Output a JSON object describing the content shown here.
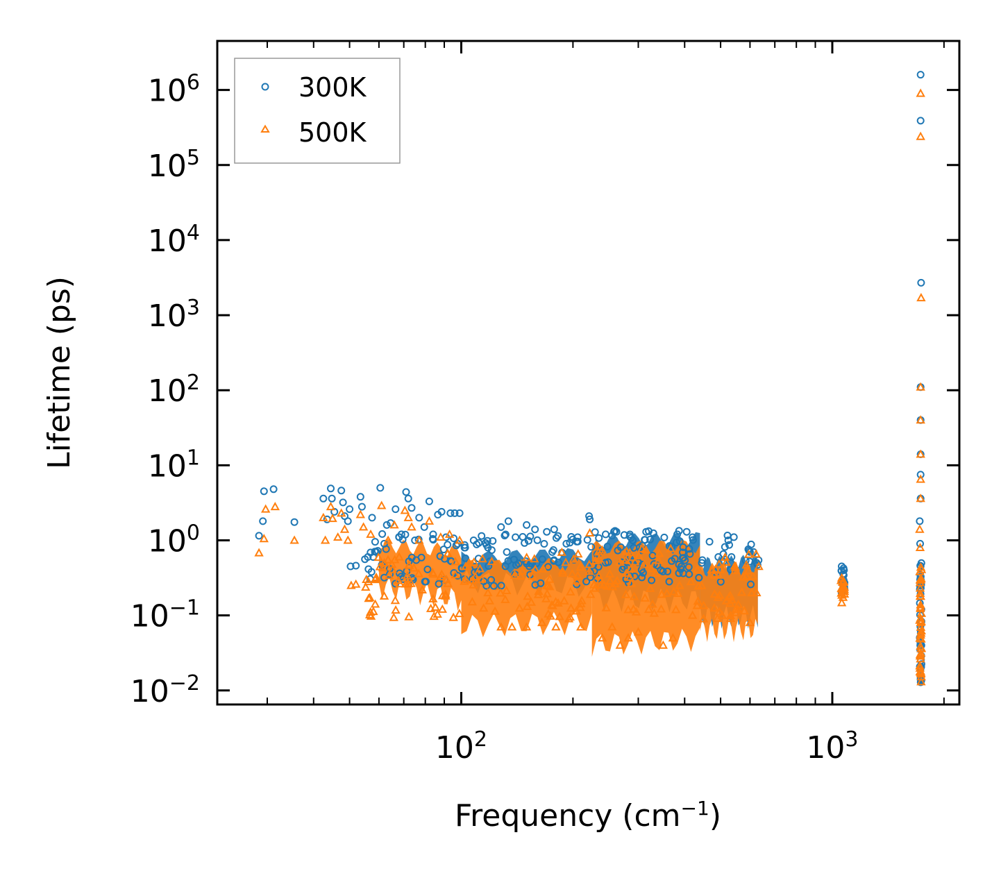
{
  "chart_data": {
    "type": "scatter",
    "title": "",
    "xlabel": "Frequency (cm",
    "xlabel_sup": "−1",
    "xlabel_end": ")",
    "ylabel": "Lifetime (ps)",
    "xscale": "log",
    "yscale": "log",
    "xlim": [
      22,
      2200
    ],
    "ylim": [
      0.0065,
      4500000
    ],
    "x_ticks": [
      {
        "value": 100,
        "base": "10",
        "exp": "2"
      },
      {
        "value": 1000,
        "base": "10",
        "exp": "3"
      }
    ],
    "y_ticks": [
      {
        "value": 0.01,
        "base": "10",
        "exp": "−2"
      },
      {
        "value": 0.1,
        "base": "10",
        "exp": "−1"
      },
      {
        "value": 1,
        "base": "10",
        "exp": "0"
      },
      {
        "value": 10,
        "base": "10",
        "exp": "1"
      },
      {
        "value": 100,
        "base": "10",
        "exp": "2"
      },
      {
        "value": 1000,
        "base": "10",
        "exp": "3"
      },
      {
        "value": 10000,
        "base": "10",
        "exp": "4"
      },
      {
        "value": 100000,
        "base": "10",
        "exp": "5"
      },
      {
        "value": 1000000,
        "base": "10",
        "exp": "6"
      }
    ],
    "legend_position": "top-left",
    "series": [
      {
        "name": "300K",
        "marker": "circle",
        "color": "#1f77b4",
        "points": [
          [
            28.5,
            1.15
          ],
          [
            29.2,
            1.8
          ],
          [
            29.4,
            4.5
          ],
          [
            31.2,
            4.8
          ],
          [
            35.5,
            1.75
          ],
          [
            42.5,
            3.6
          ],
          [
            43.5,
            1.9
          ],
          [
            44.5,
            4.9
          ],
          [
            44.8,
            3.6
          ],
          [
            45.5,
            2.4
          ],
          [
            47.5,
            4.6
          ],
          [
            48.0,
            3.2
          ],
          [
            48.5,
            2.1
          ],
          [
            49.5,
            1.8
          ],
          [
            50.0,
            2.6
          ],
          [
            50.3,
            0.45
          ],
          [
            52.0,
            0.46
          ],
          [
            53.5,
            3.8
          ],
          [
            54.0,
            2.8
          ],
          [
            55.0,
            0.56
          ],
          [
            56.0,
            0.6
          ],
          [
            57.5,
            2.0
          ],
          [
            59.0,
            0.7
          ],
          [
            60.5,
            5.0
          ],
          [
            62.0,
            0.9
          ],
          [
            63.0,
            1.6
          ],
          [
            64.5,
            1.7
          ],
          [
            66.5,
            2.6
          ],
          [
            68.0,
            1.1
          ],
          [
            69.0,
            1.2
          ],
          [
            71.0,
            4.4
          ],
          [
            72.0,
            3.6
          ],
          [
            73.5,
            2.7
          ],
          [
            75.0,
            1.0
          ],
          [
            77.0,
            2.0
          ],
          [
            79.5,
            1.5
          ],
          [
            82.0,
            3.3
          ],
          [
            84.0,
            1.2
          ],
          [
            86.5,
            2.2
          ],
          [
            88.5,
            2.4
          ],
          [
            91.0,
            1.1
          ],
          [
            93.5,
            2.3
          ],
          [
            96.0,
            2.3
          ],
          [
            99.0,
            2.3
          ],
          [
            102.0,
            0.8
          ],
          [
            108.0,
            1.0
          ],
          [
            118.0,
            0.8
          ],
          [
            128.0,
            1.5
          ],
          [
            134.0,
            1.8
          ],
          [
            140.0,
            1.1
          ],
          [
            150.0,
            1.6
          ],
          [
            158.0,
            1.4
          ],
          [
            170.0,
            1.3
          ],
          [
            178.0,
            1.4
          ],
          [
            192.0,
            0.9
          ],
          [
            206.0,
            1.1
          ],
          [
            221.0,
            2.1
          ],
          [
            222.0,
            1.9
          ],
          [
            245.0,
            1.2
          ],
          [
            262.0,
            1.3
          ],
          [
            290.0,
            1.0
          ],
          [
            315.0,
            1.3
          ],
          [
            345.0,
            0.4
          ],
          [
            382.0,
            1.2
          ],
          [
            405.0,
            1.3
          ],
          [
            420.0,
            1.1
          ],
          [
            445.0,
            0.5
          ],
          [
            493.0,
            0.6
          ],
          [
            535.0,
            0.6
          ],
          [
            600.0,
            0.7
          ],
          [
            625.0,
            0.5
          ],
          [
            1060.0,
            0.45
          ],
          [
            1075.0,
            0.4
          ],
          [
            1730.0,
            1600000.0
          ],
          [
            1730.0,
            390000.0
          ],
          [
            1735.0,
            2700
          ],
          [
            1730.0,
            110
          ],
          [
            1730.0,
            40
          ],
          [
            1730.0,
            14
          ],
          [
            1730.0,
            7.5
          ],
          [
            1730.0,
            3.6
          ],
          [
            1720.0,
            1.8
          ],
          [
            1725.0,
            0.9
          ],
          [
            1730.0,
            0.45
          ],
          [
            1730.0,
            0.25
          ],
          [
            1730.0,
            0.12
          ],
          [
            1725.0,
            0.035
          ],
          [
            1730.0,
            0.02
          ],
          [
            1735.0,
            0.014
          ]
        ]
      },
      {
        "name": "500K",
        "marker": "triangle",
        "color": "#ff7f0e",
        "points": [
          [
            28.5,
            0.68
          ],
          [
            29.4,
            1.05
          ],
          [
            29.7,
            2.6
          ],
          [
            31.5,
            2.8
          ],
          [
            35.5,
            1.0
          ],
          [
            42.5,
            2.0
          ],
          [
            43.0,
            1.0
          ],
          [
            44.5,
            2.8
          ],
          [
            45.0,
            1.95
          ],
          [
            46.5,
            1.1
          ],
          [
            47.5,
            2.3
          ],
          [
            48.5,
            1.4
          ],
          [
            49.5,
            1.0
          ],
          [
            50.5,
            0.25
          ],
          [
            52.0,
            0.26
          ],
          [
            53.5,
            2.2
          ],
          [
            54.5,
            1.5
          ],
          [
            55.5,
            0.3
          ],
          [
            57.0,
            1.2
          ],
          [
            59.0,
            0.32
          ],
          [
            61.0,
            2.9
          ],
          [
            62.0,
            0.5
          ],
          [
            63.5,
            1.0
          ],
          [
            66.0,
            1.6
          ],
          [
            68.0,
            0.6
          ],
          [
            70.5,
            2.5
          ],
          [
            72.0,
            2.0
          ],
          [
            73.5,
            1.5
          ],
          [
            77.0,
            1.0
          ],
          [
            82.0,
            1.8
          ],
          [
            88.0,
            1.1
          ],
          [
            93.0,
            1.2
          ],
          [
            99.0,
            1.0
          ],
          [
            105.0,
            0.5
          ],
          [
            118.0,
            0.2
          ],
          [
            128.0,
            0.07
          ],
          [
            137.0,
            0.07
          ],
          [
            150.0,
            0.07
          ],
          [
            165.0,
            0.08
          ],
          [
            180.0,
            0.07
          ],
          [
            195.0,
            0.09
          ],
          [
            210.0,
            0.07
          ],
          [
            222.0,
            1.25
          ],
          [
            240.0,
            0.05
          ],
          [
            255.0,
            0.07
          ],
          [
            268.0,
            0.04
          ],
          [
            282.0,
            0.05
          ],
          [
            300.0,
            0.06
          ],
          [
            320.0,
            0.12
          ],
          [
            350.0,
            0.04
          ],
          [
            372.0,
            0.05
          ],
          [
            420.0,
            0.1
          ],
          [
            450.0,
            0.09
          ],
          [
            505.0,
            0.1
          ],
          [
            550.0,
            0.12
          ],
          [
            600.0,
            0.08
          ],
          [
            625.0,
            0.2
          ],
          [
            1060.0,
            0.2
          ],
          [
            1075.0,
            0.28
          ],
          [
            1730.0,
            900000.0
          ],
          [
            1730.0,
            240000.0
          ],
          [
            1735.0,
            1700
          ],
          [
            1730.0,
            110
          ],
          [
            1730.0,
            40
          ],
          [
            1730.0,
            14
          ],
          [
            1730.0,
            6.5
          ],
          [
            1730.0,
            3.6
          ],
          [
            1720.0,
            1.4
          ],
          [
            1725.0,
            0.8
          ],
          [
            1730.0,
            0.3
          ],
          [
            1730.0,
            0.18
          ],
          [
            1730.0,
            0.08
          ],
          [
            1725.0,
            0.03
          ],
          [
            1730.0,
            0.018
          ],
          [
            1735.0,
            0.013
          ]
        ]
      }
    ]
  }
}
